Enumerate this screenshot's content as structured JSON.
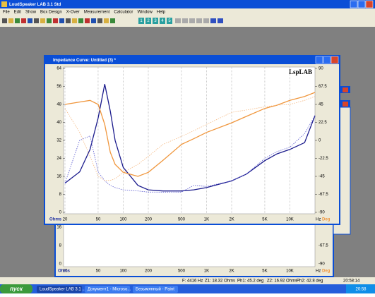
{
  "app": {
    "title": "LoudSpeaker LAB 3.1 Std",
    "menu": [
      "File",
      "Edit",
      "Show",
      "Box Design",
      "X-Over",
      "Measurement",
      "Calculator",
      "Window",
      "Help"
    ],
    "toolbar_numbers": [
      "1",
      "2",
      "3",
      "4",
      "5"
    ]
  },
  "window": {
    "title": "Impedance Curve: Untitled (3) *",
    "logo": "LspLAB"
  },
  "chart_data": {
    "type": "line",
    "x": [
      20,
      30,
      40,
      50,
      60,
      70,
      80,
      100,
      150,
      200,
      300,
      500,
      700,
      1000,
      2000,
      3000,
      5000,
      7000,
      10000,
      15000,
      20000
    ],
    "xlim": [
      20,
      20000
    ],
    "log_x": true,
    "xticks": [
      20,
      50,
      100,
      200,
      500,
      {
        "value": 1000,
        "label": "1K"
      },
      {
        "value": 2000,
        "label": "2K"
      },
      {
        "value": 5000,
        "label": "5K"
      },
      {
        "value": 10000,
        "label": "10K"
      }
    ],
    "xlabel": "Hz",
    "ylabel": "Ohms",
    "y2label": "Deg",
    "ylim": [
      0,
      64
    ],
    "yticks": [
      0,
      8,
      16,
      24,
      32,
      40,
      48,
      56,
      64
    ],
    "y2lim": [
      -90,
      90
    ],
    "y2ticks": [
      90,
      67.5,
      45,
      22.5,
      0,
      -22.5,
      -45,
      -67.5,
      -90
    ],
    "grid": true,
    "series": [
      {
        "color": "#1a1a8c",
        "dash": false,
        "values": [
          13,
          18,
          28,
          42,
          57,
          45,
          32,
          20,
          12,
          10,
          9.5,
          9.5,
          10,
          11,
          14,
          17,
          23,
          26,
          28,
          31,
          43
        ]
      },
      {
        "color": "#5a5ad0",
        "dash": true,
        "values": [
          13,
          32,
          34,
          18,
          14,
          12,
          11,
          10,
          9.5,
          9,
          9,
          9,
          12,
          11.5,
          14,
          17,
          24,
          27,
          29,
          35,
          43
        ]
      },
      {
        "color": "#f0963c",
        "dash": false,
        "axis": "y2",
        "values": [
          45,
          48,
          50,
          45,
          20,
          -15,
          -30,
          -40,
          -45,
          -40,
          -25,
          -5,
          2,
          10,
          22,
          30,
          40,
          44,
          50,
          55,
          60
        ]
      },
      {
        "color": "#f5b880",
        "dash": true,
        "axis": "y2",
        "values": [
          40,
          10,
          -20,
          -45,
          -50,
          -50,
          -48,
          -40,
          -30,
          -20,
          -5,
          5,
          12,
          20,
          35,
          38,
          42,
          44,
          45,
          50,
          55
        ]
      }
    ]
  },
  "background_window": {
    "yticks": [
      16,
      8,
      0
    ],
    "y2ticks": [
      -67.5,
      -90
    ]
  },
  "status_bar": [
    "F: 4416 Hz",
    "Z1: 18.32 Ohms",
    "Ph1: 45.2 deg",
    "Z2: 16.92 Ohms",
    "Ph2: 42.8 deg",
    "20:58:14"
  ],
  "taskbar": {
    "start": "пуск",
    "tasks": [
      "LoudSpeaker LAB 3.1 ...",
      "Документ1 - Microso...",
      "Безымянный - Paint"
    ],
    "clock": "20:58"
  }
}
